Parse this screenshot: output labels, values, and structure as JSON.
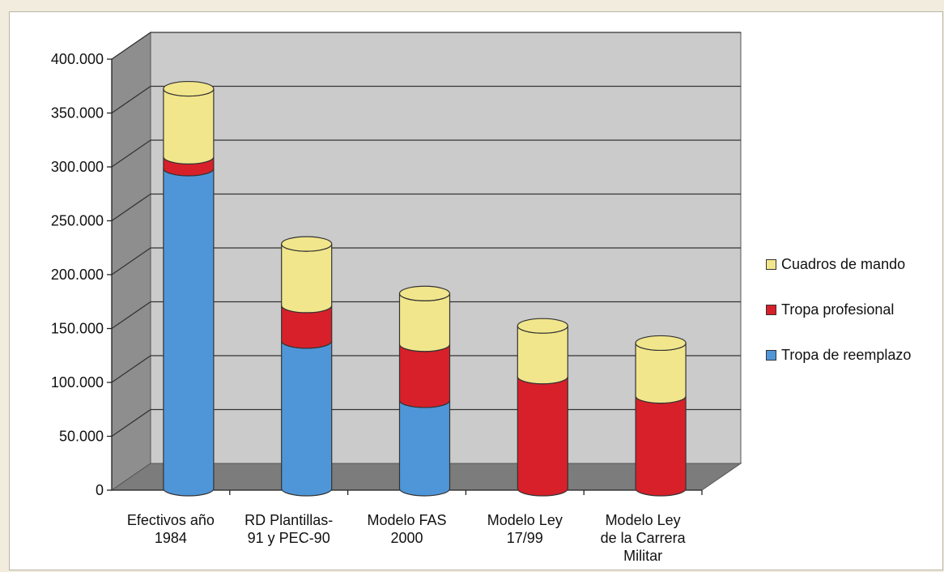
{
  "chart_data": {
    "type": "bar",
    "stacked": true,
    "style": "3d-cylinder",
    "categories": [
      [
        "Efectivos año",
        "1984"
      ],
      [
        "RD Plantillas-",
        "91 y PEC-90"
      ],
      [
        "Modelo FAS",
        "2000"
      ],
      [
        "Modelo Ley",
        "17/99"
      ],
      [
        "Modelo Ley",
        "de la Carrera",
        "Militar"
      ]
    ],
    "series": [
      {
        "name": "Tropa de reemplazo",
        "color": "#4f96d8",
        "values": [
          297000,
          137000,
          82000,
          0,
          0
        ]
      },
      {
        "name": "Tropa profesional",
        "color": "#d8202a",
        "values": [
          11000,
          33000,
          52000,
          104000,
          86000
        ]
      },
      {
        "name": "Cuadros de mando",
        "color": "#f2e68c",
        "values": [
          63000,
          57000,
          47000,
          47000,
          49000
        ]
      }
    ],
    "legend_order": [
      "Cuadros de mando",
      "Tropa profesional",
      "Tropa de reemplazo"
    ],
    "ylim": [
      0,
      400000
    ],
    "yticks": [
      "0",
      "50.000",
      "100.000",
      "150.000",
      "200.000",
      "250.000",
      "300.000",
      "350.000",
      "400.000"
    ],
    "legend_position": "right",
    "grid": true
  }
}
